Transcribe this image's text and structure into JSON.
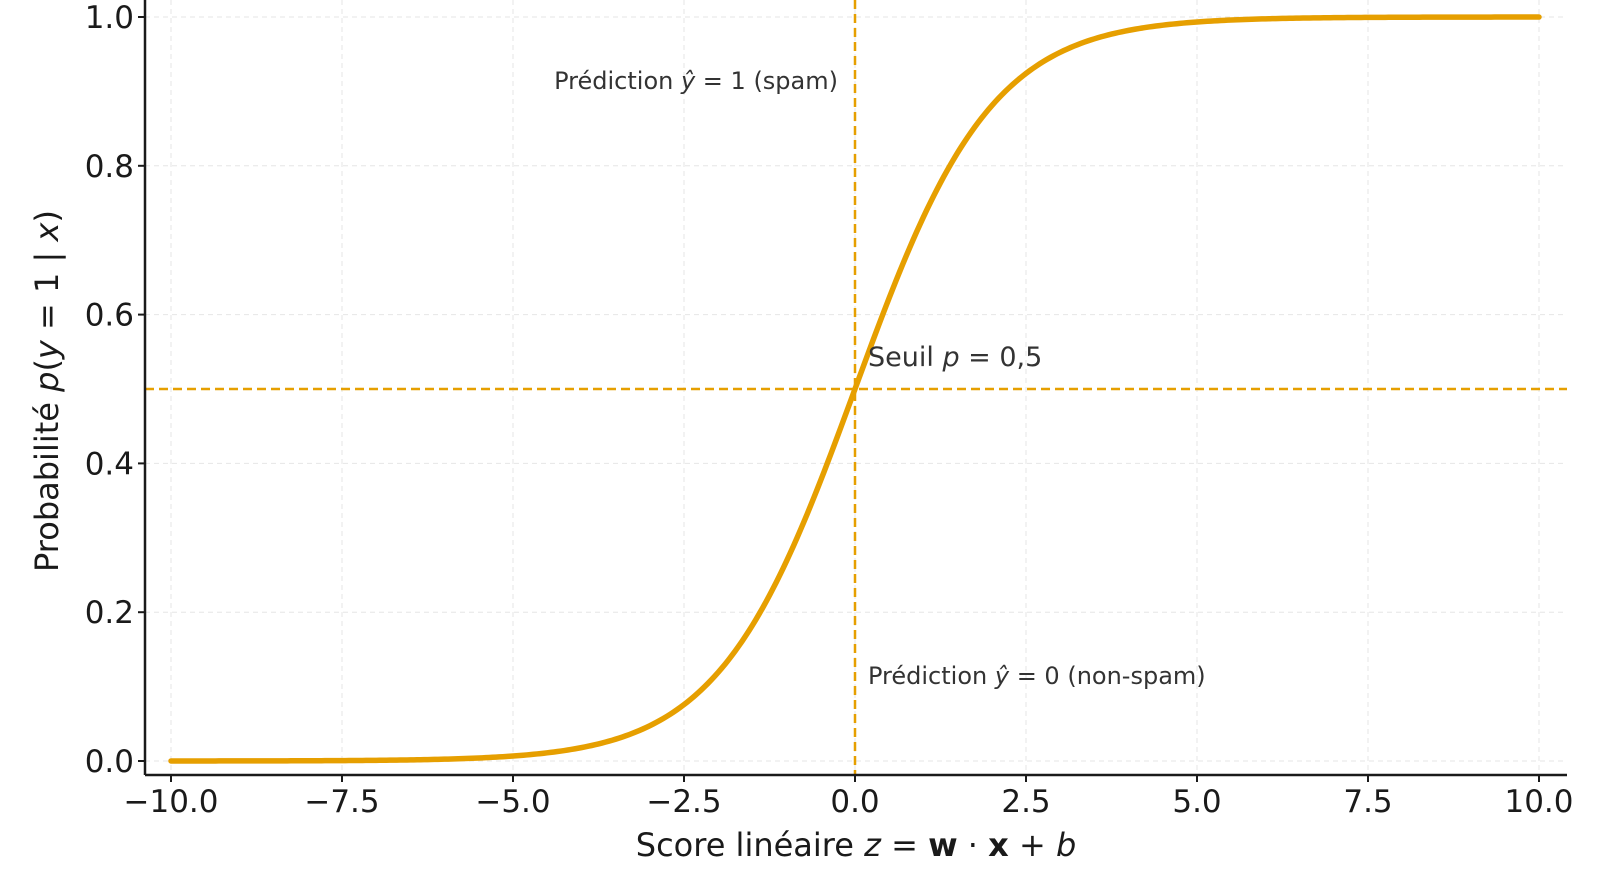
{
  "chart_data": {
    "type": "line",
    "title": "",
    "xlabel": {
      "prefix": "Score linéaire ",
      "var": "z",
      "eq": " = ",
      "w": "w",
      "dot": " · ",
      "x": "x",
      "plus": " + ",
      "b": "b"
    },
    "ylabel": {
      "prefix": "Probabilité ",
      "p": "p",
      "open": "(",
      "y": "y",
      "eq": " = 1 | ",
      "x": "x",
      "close": ")"
    },
    "xlim": [
      -10.0,
      10.0
    ],
    "ylim": [
      0.0,
      1.0
    ],
    "x_ticks": [
      -10.0,
      -7.5,
      -5.0,
      -2.5,
      0.0,
      2.5,
      5.0,
      7.5,
      10.0
    ],
    "x_tick_labels": [
      "−10.0",
      "−7.5",
      "−5.0",
      "−2.5",
      "0.0",
      "2.5",
      "5.0",
      "7.5",
      "10.0"
    ],
    "y_ticks": [
      0.0,
      0.2,
      0.4,
      0.6,
      0.8,
      1.0
    ],
    "y_tick_labels": [
      "0.0",
      "0.2",
      "0.4",
      "0.6",
      "0.8",
      "1.0"
    ],
    "grid": true,
    "series": [
      {
        "function": "sigmoid",
        "color": "#e69f00",
        "x": [
          -10,
          -9,
          -8,
          -7,
          -6,
          -5,
          -4,
          -3,
          -2.5,
          -2,
          -1.5,
          -1,
          -0.5,
          0,
          0.5,
          1,
          1.5,
          2,
          2.5,
          3,
          4,
          5,
          6,
          7,
          8,
          9,
          10
        ],
        "y": [
          5e-05,
          0.00012,
          0.00034,
          0.00091,
          0.00247,
          0.00669,
          0.01799,
          0.04743,
          0.07586,
          0.1192,
          0.18243,
          0.26894,
          0.37754,
          0.5,
          0.62246,
          0.73106,
          0.81757,
          0.8808,
          0.92414,
          0.95257,
          0.98201,
          0.99331,
          0.99753,
          0.99909,
          0.99966,
          0.99988,
          0.99995
        ]
      }
    ],
    "reference_lines": [
      {
        "orientation": "vertical",
        "x": 0.0,
        "color": "#e69f00",
        "style": "dashed"
      },
      {
        "orientation": "horizontal",
        "y": 0.5,
        "color": "#e69f00",
        "style": "dashed"
      }
    ],
    "annotations": {
      "threshold": {
        "prefix": "Seuil ",
        "var": "p",
        "suffix": " = 0,5"
      },
      "spam": {
        "prefix": "Prédiction ",
        "var": "ŷ",
        "suffix": " = 1 (spam)"
      },
      "nonspam": {
        "prefix": "Prédiction ",
        "var": "ŷ",
        "suffix": " = 0 (non-spam)"
      }
    }
  }
}
